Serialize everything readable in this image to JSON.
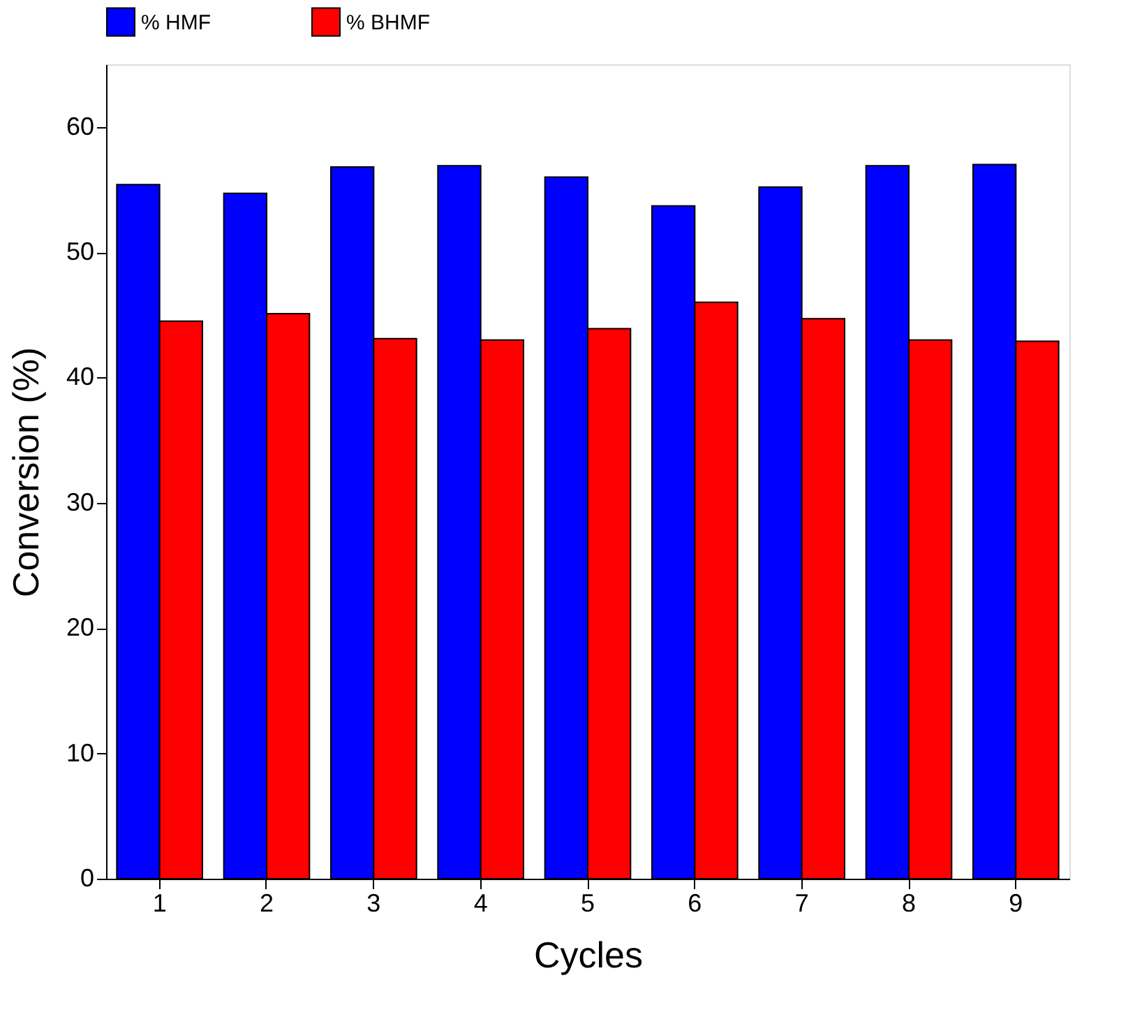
{
  "chart_data": {
    "type": "bar",
    "xlabel": "Cycles",
    "ylabel": "Conversion (%)",
    "categories": [
      "1",
      "2",
      "3",
      "4",
      "5",
      "6",
      "7",
      "8",
      "9"
    ],
    "series": [
      {
        "name": "% HMF",
        "color": "#0000ff",
        "values": [
          55.4,
          54.7,
          56.8,
          56.9,
          56.0,
          53.7,
          55.2,
          56.9,
          57.0
        ]
      },
      {
        "name": "% BHMF",
        "color": "#ff0000",
        "values": [
          44.5,
          45.1,
          43.1,
          43.0,
          43.9,
          46.0,
          44.7,
          43.0,
          42.9
        ]
      }
    ],
    "ylim": [
      0,
      65
    ],
    "yticks": [
      0,
      10,
      20,
      30,
      40,
      50,
      60
    ],
    "grid": false,
    "legend": "top"
  }
}
